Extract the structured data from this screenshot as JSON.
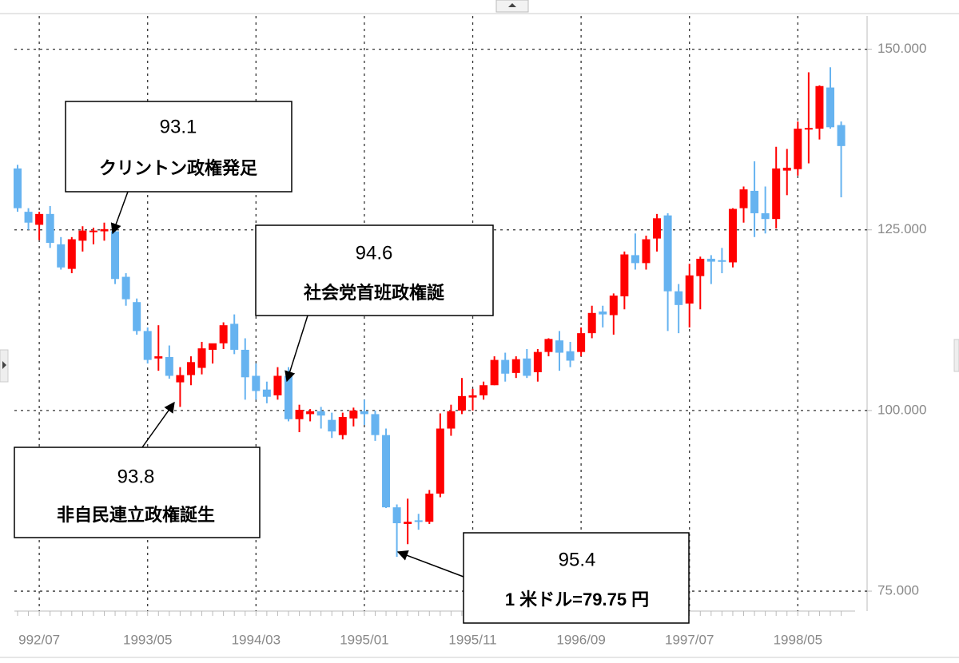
{
  "chart_data": {
    "type": "candlestick",
    "categories": [
      null,
      null,
      "992/07",
      null,
      null,
      null,
      null,
      null,
      null,
      null,
      null,
      null,
      "1993/05",
      null,
      null,
      null,
      null,
      null,
      null,
      null,
      null,
      null,
      "1994/03",
      null,
      null,
      null,
      null,
      null,
      null,
      null,
      null,
      null,
      "1995/01",
      null,
      null,
      null,
      null,
      null,
      null,
      null,
      null,
      null,
      "1995/11",
      null,
      null,
      null,
      null,
      null,
      null,
      null,
      null,
      null,
      "1996/09",
      null,
      null,
      null,
      null,
      null,
      null,
      null,
      null,
      null,
      "1997/07",
      null,
      null,
      null,
      null,
      null,
      null,
      null,
      null,
      null,
      "1998/05",
      null,
      null,
      null,
      null
    ],
    "open": [
      133.5,
      127.5,
      125.7,
      127.2,
      123,
      119.6,
      123.5,
      124.7,
      124.8,
      124.8,
      118.5,
      115,
      111,
      107.2,
      107.4,
      103.9,
      104.9,
      105.9,
      108.4,
      109.3,
      112,
      108.4,
      104.8,
      102.9,
      102.1,
      104.8,
      98.8,
      99.5,
      99.9,
      98.7,
      96.6,
      98.9,
      99.9,
      99.5,
      96.6,
      86.6,
      84.3,
      84.8,
      84.6,
      88.5,
      97.5,
      100,
      101.8,
      102.1,
      103.5,
      107,
      105.2,
      107.2,
      105.3,
      108.1,
      109.7,
      108.2,
      108.1,
      110.7,
      113.7,
      113.2,
      115.8,
      121.5,
      120.4,
      123.8,
      127,
      116.5,
      114.8,
      118.6,
      121,
      120.8,
      120.5,
      128,
      130.4,
      127.3,
      126.5,
      133.2,
      133.4,
      138.9,
      139,
      144.7,
      139.5
    ],
    "high": [
      134,
      128,
      127.5,
      128.3,
      124,
      124,
      125.5,
      125.3,
      126,
      125.3,
      119,
      115.5,
      111.5,
      111.8,
      109,
      106,
      107.5,
      109.5,
      109,
      112.2,
      113.3,
      110,
      106.5,
      104,
      106,
      106,
      100.8,
      100.2,
      100.5,
      99.7,
      99.7,
      100.4,
      101.5,
      100,
      97.5,
      87,
      87.8,
      85.7,
      89,
      99.6,
      100.8,
      104.5,
      103,
      104,
      107.5,
      108,
      107.5,
      108.5,
      108.5,
      110,
      111,
      109.5,
      111.5,
      114.5,
      114.5,
      116.2,
      122,
      124.5,
      124.2,
      127.2,
      127.3,
      117.5,
      120.3,
      121.3,
      121.5,
      122.5,
      128,
      131,
      134.5,
      131,
      136.5,
      136.2,
      140,
      146.8,
      145,
      147.5,
      140
    ],
    "low": [
      127.5,
      125,
      123.6,
      122.5,
      119.5,
      119,
      122,
      123,
      123.5,
      117.5,
      114.5,
      110.5,
      106.5,
      105.5,
      104.4,
      100.5,
      103.5,
      105,
      106.5,
      108.5,
      107.8,
      101.5,
      101.5,
      101,
      101.5,
      98.5,
      97,
      98.5,
      97.5,
      96.2,
      96,
      97.8,
      98,
      95.8,
      86.5,
      79.75,
      81.5,
      83.5,
      84.3,
      88,
      96.5,
      99.5,
      100,
      101.5,
      103.5,
      104,
      104.5,
      104.5,
      104,
      107.5,
      105.5,
      106,
      107.5,
      110,
      111.5,
      110.5,
      114,
      119.5,
      119.5,
      122,
      111,
      110.7,
      111.5,
      114,
      117.5,
      119,
      119.8,
      126,
      124,
      124.5,
      125.2,
      129.8,
      132.5,
      134.2,
      137.5,
      139,
      129.5
    ],
    "close": [
      128,
      126,
      127.2,
      123.2,
      119.8,
      123.7,
      124.9,
      124.9,
      125.1,
      118.2,
      115.4,
      111,
      107,
      107.5,
      104.8,
      104.9,
      106.7,
      108.6,
      109.3,
      111.8,
      108.4,
      104.6,
      102.7,
      101.9,
      104.8,
      98.8,
      100.1,
      99.9,
      99.3,
      97.1,
      99.1,
      100,
      99.5,
      96.6,
      86.6,
      84.4,
      84.6,
      84.6,
      88.5,
      97.5,
      99.9,
      102,
      102.1,
      103.5,
      107,
      105.1,
      107.1,
      104.8,
      108.1,
      109.9,
      108,
      106.9,
      110.7,
      113.5,
      113.3,
      115.9,
      121.6,
      120.4,
      123.7,
      126.6,
      116.5,
      114.6,
      118.7,
      121,
      120.6,
      120.7,
      127.9,
      130.6,
      127.3,
      126.5,
      133.5,
      133.6,
      139,
      139.1,
      144.9,
      139.2,
      136.6
    ],
    "up_color": "#ff0000",
    "down_color": "#66b3f0",
    "ylim": [
      73.9,
      154.6
    ],
    "yticks": [
      {
        "value": 75,
        "label": "75.000"
      },
      {
        "value": 100,
        "label": "100.000"
      },
      {
        "value": 125,
        "label": "125.000"
      },
      {
        "value": 150,
        "label": "150.000"
      }
    ],
    "grid": true,
    "annotations": [
      {
        "label": "93.1",
        "text": "クリントン政権発足"
      },
      {
        "label": "94.6",
        "text": "社会党首班政権誕"
      },
      {
        "label": "93.8",
        "text": "非自民連立政権誕生"
      },
      {
        "label": "95.4",
        "text": "1 米ドル=79.75 円"
      }
    ]
  }
}
